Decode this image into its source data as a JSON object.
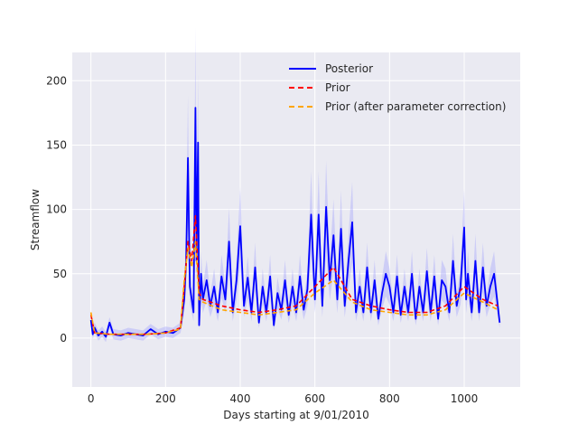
{
  "chart_data": {
    "type": "line",
    "xlabel": "Days starting at 9/01/2010",
    "ylabel": "Streamflow",
    "xlim": [
      -50,
      1150
    ],
    "ylim": [
      -38,
      222
    ],
    "xticks": [
      0,
      200,
      400,
      600,
      800,
      1000
    ],
    "yticks": [
      0,
      50,
      100,
      150,
      200
    ],
    "grid": true,
    "legend_position": "top-right",
    "colors": {
      "background": "#eaeaf2",
      "grid": "#ffffff",
      "posterior": "#0000ff",
      "posterior_band": "#9999ff",
      "prior": "#ff0000",
      "prior_corrected": "#ffa500"
    },
    "series": [
      {
        "name": "Posterior",
        "style": "solid",
        "x": [
          0,
          5,
          10,
          20,
          30,
          40,
          50,
          60,
          80,
          100,
          120,
          140,
          160,
          180,
          200,
          220,
          240,
          250,
          255,
          260,
          265,
          270,
          275,
          280,
          283,
          287,
          290,
          295,
          300,
          310,
          320,
          330,
          340,
          350,
          360,
          370,
          380,
          390,
          400,
          410,
          420,
          430,
          440,
          450,
          460,
          470,
          480,
          490,
          500,
          510,
          520,
          530,
          540,
          550,
          560,
          570,
          580,
          590,
          600,
          610,
          620,
          630,
          640,
          650,
          660,
          670,
          680,
          690,
          700,
          710,
          720,
          730,
          740,
          750,
          760,
          770,
          780,
          790,
          800,
          810,
          820,
          830,
          840,
          850,
          860,
          870,
          880,
          890,
          900,
          910,
          920,
          930,
          940,
          950,
          960,
          970,
          980,
          990,
          1000,
          1005,
          1010,
          1020,
          1030,
          1040,
          1050,
          1060,
          1070,
          1080,
          1090,
          1095
        ],
        "y": [
          14,
          3,
          8,
          2,
          5,
          1,
          12,
          3,
          2,
          4,
          3,
          2,
          7,
          3,
          5,
          4,
          8,
          30,
          60,
          140,
          40,
          30,
          20,
          179,
          60,
          152,
          10,
          50,
          30,
          45,
          25,
          40,
          20,
          48,
          30,
          75,
          20,
          45,
          87,
          25,
          47,
          20,
          55,
          12,
          40,
          20,
          48,
          10,
          35,
          22,
          45,
          18,
          40,
          20,
          48,
          22,
          38,
          96,
          30,
          96,
          25,
          102,
          45,
          80,
          30,
          85,
          25,
          60,
          90,
          20,
          40,
          20,
          55,
          20,
          45,
          15,
          35,
          50,
          40,
          20,
          48,
          18,
          40,
          20,
          50,
          15,
          40,
          20,
          52,
          20,
          48,
          15,
          45,
          40,
          20,
          60,
          25,
          40,
          86,
          30,
          50,
          20,
          60,
          20,
          55,
          25,
          40,
          50,
          25,
          12
        ]
      },
      {
        "name": "Prior",
        "style": "dashed",
        "x": [
          0,
          10,
          50,
          100,
          150,
          200,
          240,
          250,
          260,
          270,
          280,
          290,
          300,
          350,
          400,
          450,
          500,
          550,
          600,
          650,
          700,
          750,
          800,
          850,
          900,
          950,
          1000,
          1050,
          1090
        ],
        "y": [
          18,
          4,
          3,
          3,
          3,
          4,
          8,
          40,
          75,
          60,
          95,
          35,
          30,
          25,
          22,
          20,
          22,
          25,
          40,
          55,
          30,
          25,
          22,
          20,
          20,
          25,
          40,
          30,
          25
        ]
      },
      {
        "name": "Prior (after parameter correction)",
        "style": "dashed",
        "x": [
          0,
          10,
          50,
          100,
          150,
          200,
          240,
          250,
          260,
          270,
          280,
          290,
          300,
          350,
          400,
          450,
          500,
          550,
          600,
          650,
          700,
          750,
          800,
          850,
          900,
          950,
          1000,
          1050,
          1090
        ],
        "y": [
          20,
          4,
          3,
          3,
          3,
          4,
          7,
          45,
          70,
          55,
          75,
          30,
          28,
          22,
          20,
          18,
          20,
          22,
          35,
          45,
          28,
          22,
          20,
          18,
          18,
          22,
          35,
          28,
          22
        ]
      }
    ]
  }
}
